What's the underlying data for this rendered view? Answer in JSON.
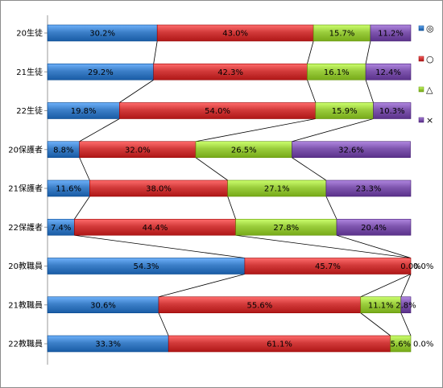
{
  "chart_data": {
    "type": "bar",
    "stacked": "percent",
    "orientation": "horizontal",
    "categories": [
      "20生徒",
      "21生徒",
      "22生徒",
      "20保護者",
      "21保護者",
      "22保護者",
      "20教職員",
      "21教職員",
      "22教職員"
    ],
    "series": [
      {
        "name": "◎",
        "color": "#3C7FC8",
        "values": [
          30.2,
          29.2,
          19.8,
          8.8,
          11.6,
          7.4,
          54.3,
          30.6,
          33.3
        ]
      },
      {
        "name": "○",
        "color": "#D23A3A",
        "values": [
          43.0,
          42.3,
          54.0,
          32.0,
          38.0,
          44.4,
          45.7,
          55.6,
          61.1
        ]
      },
      {
        "name": "△",
        "color": "#9ACD3C",
        "values": [
          15.7,
          16.1,
          15.9,
          26.5,
          27.1,
          27.8,
          0.0,
          11.1,
          5.6
        ]
      },
      {
        "name": "×",
        "color": "#7E55AE",
        "values": [
          11.2,
          12.4,
          10.3,
          32.6,
          23.3,
          20.4,
          0.0,
          2.8,
          0.0
        ]
      }
    ],
    "labels": [
      [
        "30.2%",
        "43.0%",
        "15.7%",
        "11.2%"
      ],
      [
        "29.2%",
        "42.3%",
        "16.1%",
        "12.4%"
      ],
      [
        "19.8%",
        "54.0%",
        "15.9%",
        "10.3%"
      ],
      [
        "8.8%",
        "32.0%",
        "26.5%",
        "32.6%"
      ],
      [
        "11.6%",
        "38.0%",
        "27.1%",
        "23.3%"
      ],
      [
        "7.4%",
        "44.4%",
        "27.8%",
        "20.4%"
      ],
      [
        "54.3%",
        "45.7%",
        "0.0%",
        "0.0%"
      ],
      [
        "30.6%",
        "55.6%",
        "11.1%",
        "2.8%"
      ],
      [
        "33.3%",
        "61.1%",
        "5.6%",
        "0.0%"
      ]
    ],
    "series_lines": true,
    "legend_position": "right",
    "grid": false
  }
}
